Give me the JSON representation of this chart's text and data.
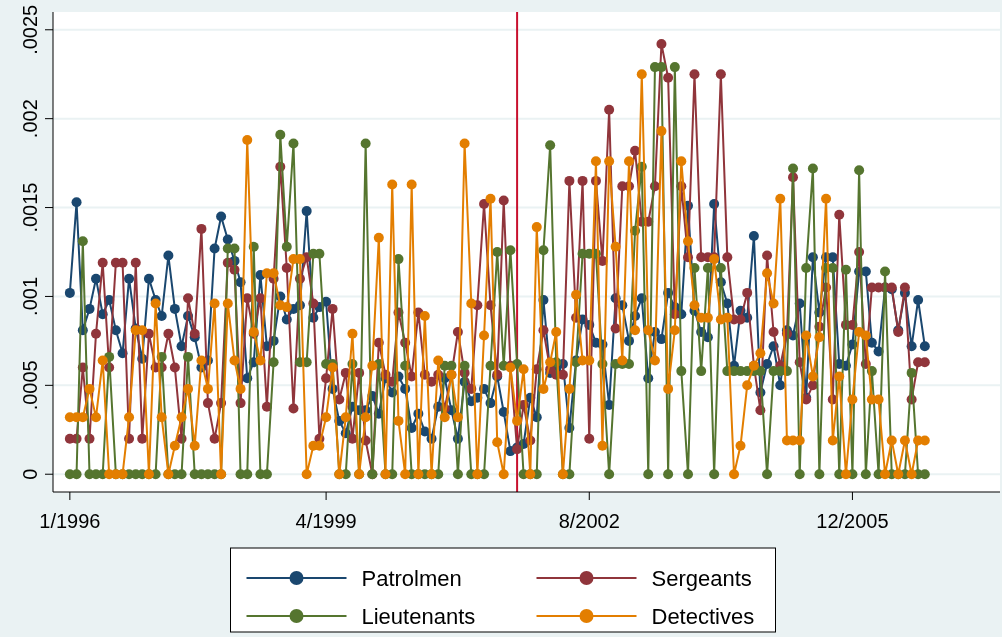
{
  "chart_data": {
    "type": "line",
    "marker": "circle",
    "grid": "y",
    "legend": "bottom",
    "xlim": [
      "1995-10-15",
      "2007-10-15"
    ],
    "xticks": [
      {
        "value": "1996-01",
        "label": "1/1996"
      },
      {
        "value": "1999-04",
        "label": "4/1999"
      },
      {
        "value": "2002-08",
        "label": "8/2002"
      },
      {
        "value": "2005-12",
        "label": "12/2005"
      }
    ],
    "ylim": [
      -0.0001,
      0.0026
    ],
    "yticks": [
      {
        "value": 0,
        "label": "0"
      },
      {
        "value": 0.0005,
        "label": ".0005"
      },
      {
        "value": 0.001,
        "label": ".001"
      },
      {
        "value": 0.0015,
        "label": ".0015"
      },
      {
        "value": 0.002,
        "label": ".002"
      },
      {
        "value": 0.0025,
        "label": ".0025"
      }
    ],
    "ref_lines": [
      {
        "axis": "x",
        "value": "2001-09",
        "color": "#c8102e"
      }
    ],
    "x": [
      "1996-01",
      "1996-02",
      "1996-03",
      "1996-04",
      "1996-05",
      "1996-06",
      "1996-07",
      "1996-08",
      "1996-09",
      "1996-10",
      "1996-11",
      "1996-12",
      "1997-01",
      "1997-02",
      "1997-03",
      "1997-04",
      "1997-05",
      "1997-06",
      "1997-07",
      "1997-08",
      "1997-09",
      "1997-10",
      "1997-11",
      "1997-12",
      "1998-01",
      "1998-02",
      "1998-03",
      "1998-04",
      "1998-05",
      "1998-06",
      "1998-07",
      "1998-08",
      "1998-09",
      "1998-10",
      "1998-11",
      "1998-12",
      "1999-01",
      "1999-02",
      "1999-03",
      "1999-04",
      "1999-05",
      "1999-06",
      "1999-07",
      "1999-08",
      "1999-09",
      "1999-10",
      "1999-11",
      "1999-12",
      "2000-01",
      "2000-02",
      "2000-03",
      "2000-04",
      "2000-05",
      "2000-06",
      "2000-07",
      "2000-08",
      "2000-09",
      "2000-10",
      "2000-11",
      "2000-12",
      "2001-01",
      "2001-02",
      "2001-03",
      "2001-04",
      "2001-05",
      "2001-06",
      "2001-07",
      "2001-08",
      "2001-09",
      "2001-10",
      "2001-11",
      "2001-12",
      "2002-01",
      "2002-02",
      "2002-03",
      "2002-04",
      "2002-05",
      "2002-06",
      "2002-07",
      "2002-08",
      "2002-09",
      "2002-10",
      "2002-11",
      "2002-12",
      "2003-01",
      "2003-02",
      "2003-03",
      "2003-04",
      "2003-05",
      "2003-06",
      "2003-07",
      "2003-08",
      "2003-09",
      "2003-10",
      "2003-11",
      "2003-12",
      "2004-01",
      "2004-02",
      "2004-03",
      "2004-04",
      "2004-05",
      "2004-06",
      "2004-07",
      "2004-08",
      "2004-09",
      "2004-10",
      "2004-11",
      "2004-12",
      "2005-01",
      "2005-02",
      "2005-03",
      "2005-04",
      "2005-05",
      "2005-06",
      "2005-07",
      "2005-08",
      "2005-09",
      "2005-10",
      "2005-11",
      "2005-12",
      "2006-01",
      "2006-02",
      "2006-03",
      "2006-04",
      "2006-05",
      "2006-06",
      "2006-07",
      "2006-08",
      "2006-09",
      "2006-10",
      "2006-11"
    ],
    "series": [
      {
        "name": "Patrolmen",
        "color": "#1a476f",
        "values": [
          0.00102,
          0.00153,
          0.00081,
          0.00093,
          0.0011,
          0.0009,
          0.00098,
          0.00081,
          0.00068,
          0.0011,
          0.00082,
          0.00065,
          0.0011,
          0.00098,
          0.00089,
          0.00123,
          0.00093,
          0.00072,
          0.00089,
          0.00077,
          0.0006,
          0.00064,
          0.00127,
          0.00145,
          0.00132,
          0.0012,
          0.00108,
          0.00054,
          0.00063,
          0.00112,
          0.00072,
          0.00075,
          0.001,
          0.00087,
          0.00093,
          0.00095,
          0.00148,
          0.00088,
          0.00094,
          0.00097,
          0.00048,
          0.0003,
          0.00023,
          0.00038,
          0.00036,
          0.00036,
          0.00044,
          0.00034,
          0.00054,
          0.00046,
          0.00055,
          0.00048,
          0.00026,
          0.00034,
          0.00024,
          0.0002,
          0.00038,
          0.00054,
          0.00036,
          0.0002,
          0.00052,
          0.00041,
          0.00043,
          0.00048,
          0.0004,
          0.00055,
          0.00035,
          0.00013,
          0.00015,
          0.00017,
          0.00043,
          0.00032,
          0.00098,
          0.00057,
          0.00059,
          0.00062,
          0.00026,
          0.00064,
          0.00087,
          0.00084,
          0.00074,
          0.00073,
          0.00039,
          0.00099,
          0.00095,
          0.00075,
          0.00089,
          0.00099,
          0.00054,
          0.0008,
          0.00076,
          0.00102,
          0.00094,
          0.0009,
          0.00151,
          0.00092,
          0.0008,
          0.00077,
          0.00152,
          0.00108,
          0.00096,
          0.00061,
          0.00092,
          0.00088,
          0.00134,
          0.00046,
          0.00062,
          0.00072,
          0.0005,
          0.00081,
          0.00078,
          0.00096,
          0.00043,
          0.00122,
          0.00091,
          0.00122,
          0.00122,
          0.00062,
          0.00061,
          0.00073,
          0.00114,
          0.00114,
          0.00074,
          0.00069,
          0.00105,
          0.00104,
          0.00081,
          0.00102,
          0.00072,
          0.00098,
          0.00072
        ]
      },
      {
        "name": "Sergeants",
        "color": "#90353b",
        "values": [
          0.0002,
          0.0002,
          0.0006,
          0.0002,
          0.00079,
          0.00119,
          0.0006,
          0.00119,
          0.00119,
          0.0002,
          0.00119,
          0.0002,
          0.00079,
          0.0006,
          0.0006,
          0.00079,
          0.0006,
          0.0002,
          0.00099,
          0.00079,
          0.00138,
          0.0004,
          0.0002,
          0.0004,
          0.00119,
          0.00115,
          0.0004,
          0.00099,
          0.00079,
          0.00099,
          0.00038,
          0.0011,
          0.00173,
          0.00116,
          0.00037,
          0.0011,
          0.00122,
          0.00096,
          0.0002,
          0.00054,
          0.00093,
          0.00042,
          0.00057,
          0.0002,
          0.00057,
          0.00019,
          0,
          0.00074,
          0.00056,
          0.00052,
          0.00091,
          0.00074,
          0.00055,
          0.00091,
          0.00056,
          0.00052,
          0.00056,
          0.00037,
          0.00056,
          0.0008,
          0.00057,
          0.00048,
          0.00095,
          0.00152,
          0.00095,
          0.00056,
          0.00154,
          0.00061,
          0.00014,
          0.00039,
          0.00019,
          0.00059,
          0.00081,
          0.00059,
          0.00056,
          0.00056,
          0.00165,
          0.00088,
          0.00165,
          0.0002,
          0.00165,
          0.0012,
          0.00205,
          0.00082,
          0.00162,
          0.00162,
          0.00182,
          0.00142,
          0.00142,
          0.00162,
          0.00242,
          0.00223,
          0.0009,
          0.00162,
          0.00122,
          0.00225,
          0.00122,
          0.00122,
          0.00122,
          0.00225,
          0.00122,
          0.00087,
          0.00087,
          0.00102,
          0.00061,
          0.00036,
          0.00123,
          0.0008,
          0.00061,
          0.00079,
          0.00167,
          0.00063,
          0.00042,
          0.0005,
          0.00083,
          0.00105,
          0.00042,
          0.00146,
          0.00084,
          0.00084,
          0.00125,
          0.00062,
          0.00105,
          0.00105,
          0.00105,
          0.00105,
          0.0008,
          0.00105,
          0.00042,
          0.00063,
          0.00063
        ]
      },
      {
        "name": "Lieutenants",
        "color": "#55752f",
        "values": [
          0,
          0,
          0.00131,
          0,
          0,
          0,
          0.00066,
          0,
          0,
          0,
          0,
          0,
          0,
          0,
          0.00066,
          0,
          0,
          0,
          0.00066,
          0,
          0,
          0,
          0,
          0,
          0.00127,
          0.00127,
          0,
          0,
          0.00128,
          0,
          0,
          0.00063,
          0.00191,
          0.00128,
          0.00186,
          0.00063,
          0.00063,
          0.00124,
          0.00124,
          0.00062,
          0.00062,
          0,
          0,
          0.00062,
          0,
          0.00186,
          0,
          0.00062,
          0,
          0,
          0.00121,
          0.00061,
          0,
          0,
          0,
          0,
          0,
          0.00061,
          0.00061,
          0,
          0.00061,
          0,
          0,
          0,
          0.00061,
          0.00125,
          0.00061,
          0.00126,
          0.00062,
          0,
          0,
          0,
          0.00126,
          0.00185,
          0.00063,
          0,
          0,
          0.00063,
          0.00124,
          0.00124,
          0.00124,
          0.00062,
          0,
          0.00062,
          0.00062,
          0.00062,
          0.00137,
          0.00173,
          0,
          0.00229,
          0.00229,
          0,
          0.00229,
          0.00058,
          0,
          0.00116,
          0.00058,
          0.00116,
          0,
          0.00116,
          0.00058,
          0.00058,
          0.00058,
          0.00058,
          0.00058,
          0.00058,
          0,
          0.00058,
          0.00058,
          0.00058,
          0.00172,
          0,
          0.00116,
          0.00172,
          0,
          0.00116,
          0.00116,
          0,
          0.00115,
          0,
          0.00171,
          0,
          0.00058,
          0,
          0.00114,
          0,
          0,
          0,
          0.00057,
          0,
          0
        ]
      },
      {
        "name": "Detectives",
        "color": "#e37e00",
        "values": [
          0.00032,
          0.00032,
          0.00032,
          0.00048,
          0.00032,
          0.00064,
          0,
          0,
          0,
          0.00032,
          0.00081,
          0.00081,
          0,
          0.00096,
          0.00032,
          0,
          0.00016,
          0.00032,
          0.00048,
          0.00016,
          0.00064,
          0.00048,
          0.00096,
          0,
          0.00096,
          0.00064,
          0.00048,
          0.00188,
          0.0008,
          0.00064,
          0.00113,
          0.00113,
          0.00095,
          0.00094,
          0.00121,
          0.00121,
          0,
          0.00016,
          0.00016,
          0.00032,
          0.0006,
          0,
          0.00032,
          0.00079,
          0,
          0.00032,
          0.00061,
          0.00133,
          0,
          0.00163,
          0.0003,
          0,
          0.00163,
          0,
          0.00089,
          0,
          0.00064,
          0.00032,
          0.00056,
          0.00032,
          0.00186,
          0.00096,
          0,
          0.00078,
          0.00155,
          0.00018,
          0,
          0.0006,
          0.0003,
          0.00059,
          0,
          0.00139,
          0.00048,
          0.00063,
          0.0008,
          0,
          0.00048,
          0.00101,
          0.00064,
          0.00064,
          0.00176,
          0.00016,
          0.00176,
          0.00128,
          0.00064,
          0.00176,
          0.00081,
          0.00225,
          0.00081,
          0.00064,
          0.00193,
          0.00048,
          0.00081,
          0.00176,
          0.00131,
          0.00095,
          0.00088,
          0.00088,
          0.00121,
          0.00087,
          0.00088,
          0,
          0.00016,
          0.0005,
          0.00061,
          0.00068,
          0.00113,
          0.00096,
          0.00155,
          0.00019,
          0.00019,
          0.00019,
          0.00078,
          0.00055,
          0.00077,
          0.00155,
          0.00019,
          0.00055,
          0,
          0.00042,
          0.0008,
          0.00078,
          0.00042,
          0.00042,
          0,
          0.00019,
          0,
          0.00019,
          0,
          0.00019,
          0.00019
        ]
      }
    ]
  }
}
